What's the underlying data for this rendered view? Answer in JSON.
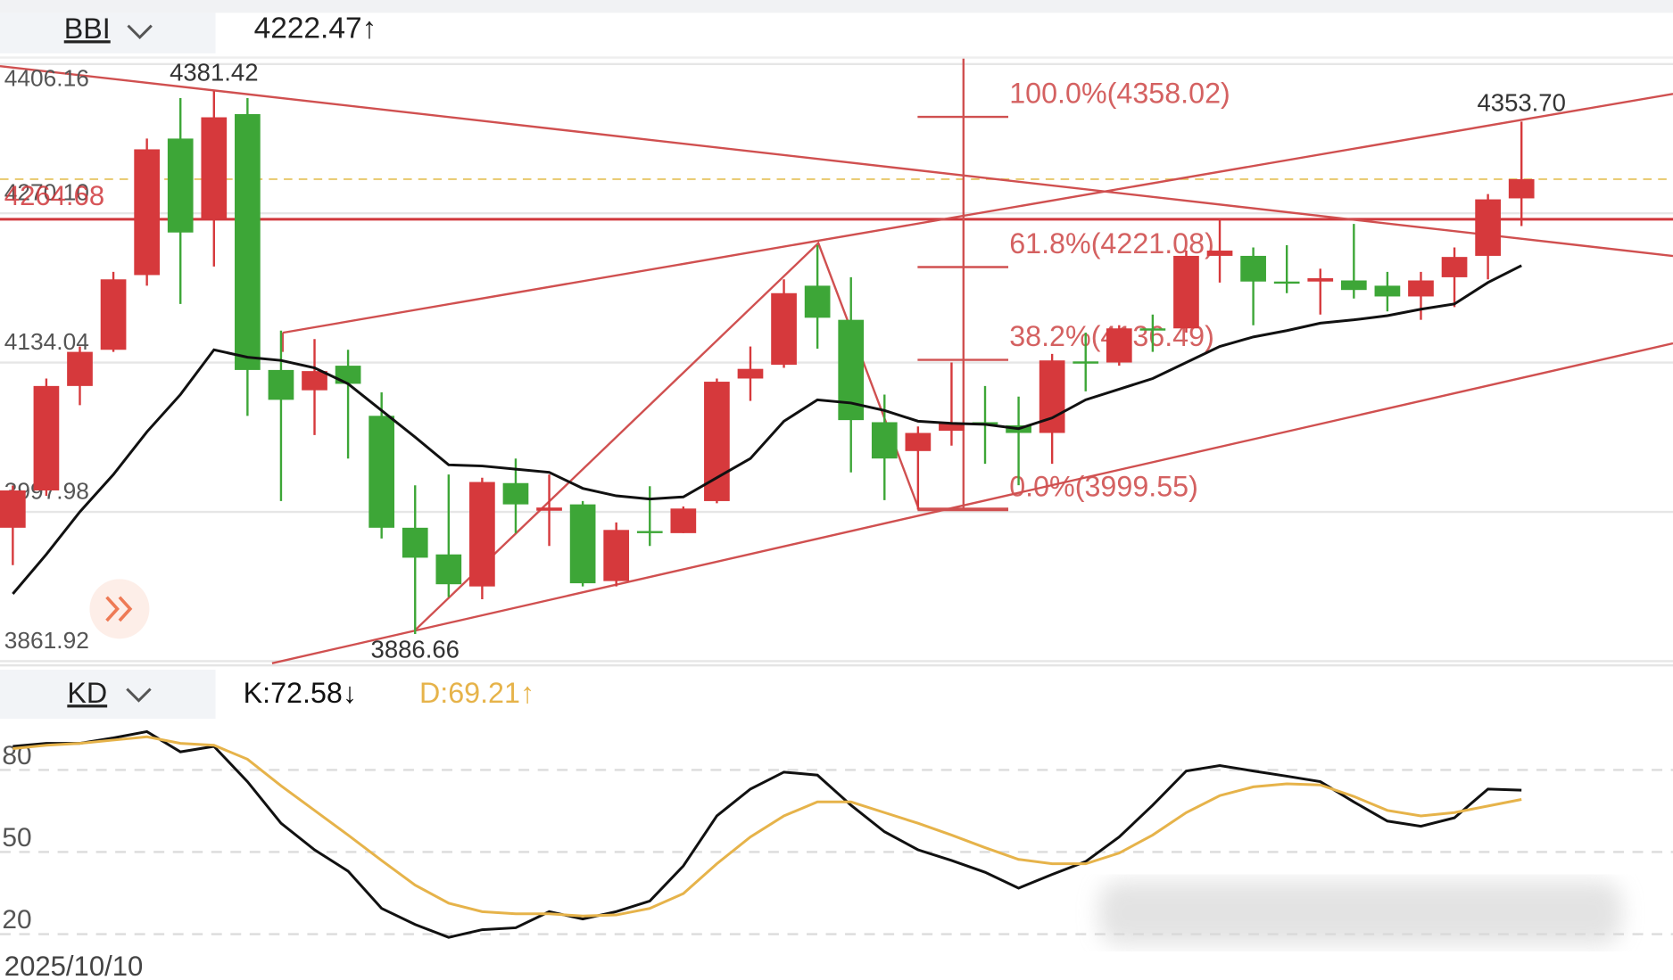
{
  "chart_data": [
    {
      "type": "candlestick",
      "indicator": "BBI",
      "readout": {
        "value": 4222.47,
        "label": "4222.47↑"
      },
      "up_color": "#d6393c",
      "down_color": "#3da637",
      "ylim": [
        3861.92,
        4406.16
      ],
      "yticks": [
        3861.92,
        3997.98,
        4134.04,
        {
          "value": 4270.1,
          "label": "4270.10"
        },
        4406.16
      ],
      "grid": true,
      "hline": {
        "value": 4264.68,
        "color": "#d0383c"
      },
      "fib_levels": [
        {
          "value": 4358.02,
          "label": "100.0%(4358.02)"
        },
        {
          "value": 4221.08,
          "label": "61.8%(4221.08)"
        },
        {
          "value": 4136.49,
          "label": "38.2%(4136.49)"
        },
        {
          "value": 3999.55,
          "label": "0.0%(3999.55)"
        }
      ],
      "annotations": [
        {
          "kind": "high",
          "value": 4381.42
        },
        {
          "kind": "low",
          "value": 3886.66
        },
        {
          "kind": "high",
          "value": {
            "value": 4353.7,
            "label": "4353.70"
          }
        }
      ],
      "open": [
        3983.5,
        4017.5,
        4112.7,
        4145.7,
        4213.8,
        4338.2,
        4265.3,
        4360.5,
        4127.3,
        4108.8,
        4131.2,
        4085.5,
        3983.5,
        3959.2,
        3930,
        4024.2,
        3999,
        4004.8,
        3934.9,
        3980.5,
        3978.6,
        4007.8,
        4119.5,
        4132.1,
        4204.1,
        4173,
        4079.7,
        4053.4,
        4071.9,
        4079.7,
        4076.8,
        4069.9,
        4135.1,
        4134.1,
        4165.2,
        4165.2,
        4231.3,
        4231.3,
        4207.9,
        4207.9,
        4208.9,
        4204.1,
        4194.3,
        4211.8,
        4231.3,
        4283.7
      ],
      "high": [
        4022,
        4119.5,
        4148.7,
        4216.7,
        4338.2,
        4375.1,
        4381.42,
        4375.1,
        4163.2,
        4155.5,
        4145.7,
        4106.9,
        4022.2,
        4032,
        4029.1,
        4046.6,
        4032,
        4007.8,
        3988.3,
        4021.4,
        4002.9,
        4119.5,
        4148.7,
        4209.9,
        4241,
        4211.8,
        4104.9,
        4075.8,
        4134.1,
        4112.7,
        4103,
        4141.9,
        4161.3,
        4168.1,
        4177.8,
        4236.1,
        4265.3,
        4239,
        4241,
        4219.6,
        4260.4,
        4216.7,
        4216.7,
        4239,
        4287.6,
        4353.7
      ],
      "low": [
        3949.4,
        4012.6,
        4095.2,
        4143.8,
        4204.1,
        4187.5,
        4221.6,
        4085.5,
        4007.8,
        4068,
        4046.6,
        3973.7,
        3886.66,
        3920.3,
        3918.3,
        3978.6,
        3966.9,
        3930,
        3930,
        3966.9,
        3978.6,
        4005.8,
        4099.1,
        4129.2,
        4146.7,
        4034,
        4008.7,
        4000,
        4058.3,
        4041.8,
        4022.3,
        4041.8,
        4107.8,
        4131.2,
        4143.8,
        4161.3,
        4207,
        4168.1,
        4197.3,
        4177.8,
        4192.4,
        4180.7,
        4173,
        4184.6,
        4209.9,
        4258.5
      ],
      "close": [
        4017.5,
        4112.7,
        4143.8,
        4209.9,
        4328.4,
        4252.6,
        4357.6,
        4127.3,
        4100.1,
        4126.3,
        4114.7,
        3983.5,
        3956.2,
        3932,
        4025.2,
        4004.8,
        4001.9,
        3932.9,
        3981.5,
        3978.6,
        4001,
        4116.6,
        4128.3,
        4197.3,
        4174.9,
        4081.6,
        4046.6,
        4069.9,
        4078.7,
        4077.7,
        4069.9,
        4136,
        4133.1,
        4165.2,
        4163.2,
        4231.3,
        4236.1,
        4207.9,
        4206,
        4210.9,
        4200.2,
        4194.3,
        4208.9,
        4230.3,
        4282.8,
        4301.2
      ],
      "series": [
        {
          "color": "#111111",
          "values": [
            3923.2,
            3959.2,
            3998,
            4032,
            4070.9,
            4104.9,
            4145.7,
            4138.9,
            4136,
            4129.2,
            4114.7,
            4090.4,
            4066.1,
            4040.8,
            4039.8,
            4036.9,
            4034,
            4019.4,
            4012.6,
            4009.7,
            4011.6,
            4029.1,
            4046.6,
            4080.6,
            4100.1,
            4097.2,
            4090.4,
            4080.6,
            4078.7,
            4077.7,
            4073.8,
            4083.6,
            4100.1,
            4109.8,
            4119.5,
            4134.1,
            4148.7,
            4157.4,
            4163.2,
            4170,
            4173,
            4176.8,
            4182.7,
            4187.5,
            4207,
            4222.47
          ]
        }
      ]
    },
    {
      "type": "line",
      "indicator": "KD",
      "ylim": [
        12,
        95
      ],
      "yticks": [
        20,
        50,
        80
      ],
      "grid": true,
      "x_label": "2025/10/10",
      "series": [
        {
          "color": "#111111",
          "readout": {
            "value": 72.58,
            "label": "K:72.58↓"
          },
          "values": [
            88.6,
            89.7,
            89.7,
            91.7,
            94.0,
            86.6,
            88.6,
            75.7,
            60.5,
            50.8,
            43.0,
            29.4,
            23.5,
            18.8,
            21.6,
            22.3,
            28.2,
            25.5,
            28.2,
            32.1,
            44.9,
            63.2,
            73.0,
            79.2,
            78.1,
            67.1,
            57.4,
            50.8,
            46.9,
            42.6,
            36.8,
            41.8,
            46.5,
            55.5,
            67.1,
            79.6,
            81.6,
            79.6,
            77.7,
            75.7,
            68.3,
            61.3,
            59.4,
            62.5,
            73.0,
            72.58
          ]
        },
        {
          "color": "#e6b34a",
          "readout": {
            "value": 69.21,
            "label": "D:69.21↑"
          },
          "values": [
            87.8,
            89.0,
            89.7,
            90.9,
            92.1,
            89.7,
            89.0,
            83.9,
            74.2,
            65.2,
            56.2,
            46.9,
            37.9,
            31.3,
            28.2,
            27.4,
            27.4,
            26.6,
            27.0,
            29.4,
            34.8,
            45.7,
            55.5,
            63.2,
            68.3,
            68.3,
            64.4,
            60.5,
            56.2,
            51.6,
            47.3,
            45.7,
            45.7,
            49.6,
            56.2,
            64.4,
            70.6,
            73.8,
            74.9,
            74.5,
            70.3,
            65.2,
            63.2,
            64.4,
            66.8,
            69.21
          ]
        }
      ]
    }
  ]
}
